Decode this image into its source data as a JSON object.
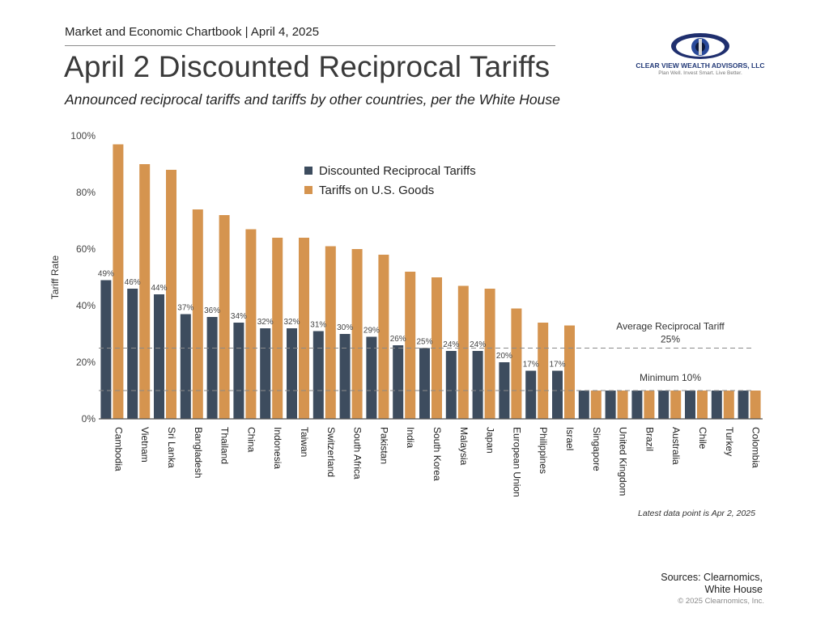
{
  "header": {
    "top_line": "Market and Economic Chartbook | April 4, 2025",
    "title": "April 2 Discounted Reciprocal Tariffs",
    "subtitle": "Announced reciprocal tariffs and tariffs by other countries, per the White House"
  },
  "logo": {
    "name": "Clear View Wealth Advisors, LLC",
    "tagline": "Plan Well. Invest Smart. Live Better."
  },
  "footer": {
    "latest_note": "Latest data point is Apr 2, 2025",
    "sources_line1": "Sources: Clearnomics,",
    "sources_line2": "White House",
    "copyright": "© 2025 Clearnomics, Inc."
  },
  "colors": {
    "reciprocal": "#3d4c5e",
    "us_goods": "#d5944f",
    "axis": "#555555",
    "reference_line": "#8a8a8a"
  },
  "chart_data": {
    "type": "bar",
    "ylabel": "Tariff Rate",
    "ylim": [
      0,
      100
    ],
    "yticks": [
      "0%",
      "20%",
      "40%",
      "60%",
      "80%",
      "100%"
    ],
    "ytick_values": [
      0,
      20,
      40,
      60,
      80,
      100
    ],
    "legend_position": "top-center",
    "categories": [
      "Cambodia",
      "Vietnam",
      "Sri Lanka",
      "Bangladesh",
      "Thailand",
      "China",
      "Indonesia",
      "Taiwan",
      "Switzerland",
      "South Africa",
      "Pakistan",
      "India",
      "South Korea",
      "Malaysia",
      "Japan",
      "European Union",
      "Philippines",
      "Israel",
      "Singapore",
      "United Kingdom",
      "Brazil",
      "Australia",
      "Chile",
      "Turkey",
      "Colombia"
    ],
    "series": [
      {
        "name": "Discounted Reciprocal Tariffs",
        "values": [
          49,
          46,
          44,
          37,
          36,
          34,
          32,
          32,
          31,
          30,
          29,
          26,
          25,
          24,
          24,
          20,
          17,
          17,
          10,
          10,
          10,
          10,
          10,
          10,
          10
        ],
        "labels": [
          "49%",
          "46%",
          "44%",
          "37%",
          "36%",
          "34%",
          "32%",
          "32%",
          "31%",
          "30%",
          "29%",
          "26%",
          "25%",
          "24%",
          "24%",
          "20%",
          "17%",
          "17%",
          "",
          "",
          "",
          "",
          "",
          "",
          ""
        ]
      },
      {
        "name": "Tariffs on U.S. Goods",
        "values": [
          97,
          90,
          88,
          74,
          72,
          67,
          64,
          64,
          61,
          60,
          58,
          52,
          50,
          47,
          46,
          39,
          34,
          33,
          10,
          10,
          10,
          10,
          10,
          10,
          10
        ]
      }
    ],
    "reference_lines": [
      {
        "value": 25,
        "label": "Average Reciprocal Tariff",
        "label2": "25%"
      },
      {
        "value": 10,
        "label": "Minimum 10%",
        "label2": ""
      }
    ]
  }
}
